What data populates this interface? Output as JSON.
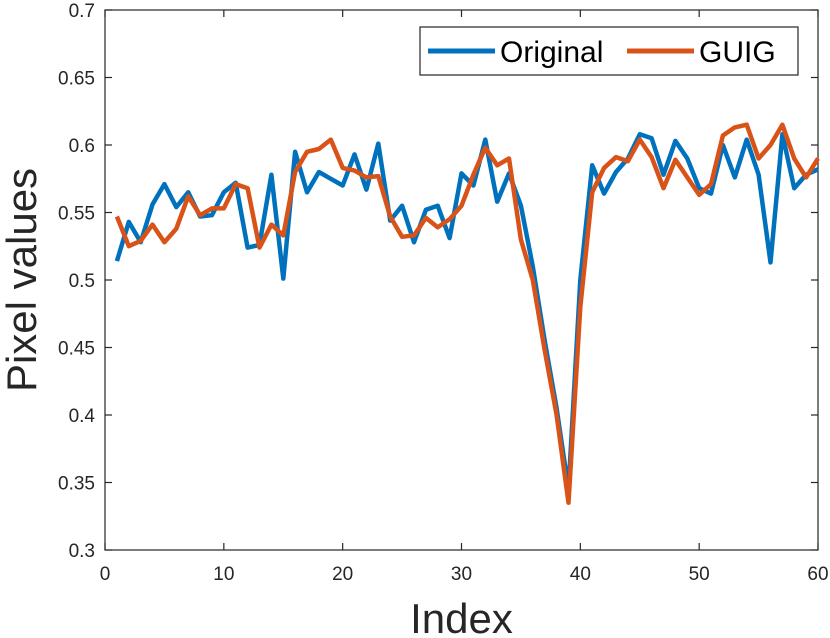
{
  "chart_data": {
    "type": "line",
    "xlabel": "Index",
    "ylabel": "Pixel values",
    "xlim": [
      0,
      60
    ],
    "ylim": [
      0.3,
      0.7
    ],
    "xticks": [
      0,
      10,
      20,
      30,
      40,
      50,
      60
    ],
    "yticks": [
      0.3,
      0.35,
      0.4,
      0.45,
      0.5,
      0.55,
      0.6,
      0.65,
      0.7
    ],
    "xtick_labels": [
      "0",
      "10",
      "20",
      "30",
      "40",
      "50",
      "60"
    ],
    "ytick_labels": [
      "0.3",
      "0.35",
      "0.4",
      "0.45",
      "0.5",
      "0.55",
      "0.6",
      "0.65",
      "0.7"
    ],
    "grid": false,
    "legend_position": "top-right",
    "x": [
      1,
      2,
      3,
      4,
      5,
      6,
      7,
      8,
      9,
      10,
      11,
      12,
      13,
      14,
      15,
      16,
      17,
      18,
      19,
      20,
      21,
      22,
      23,
      24,
      25,
      26,
      27,
      28,
      29,
      30,
      31,
      32,
      33,
      34,
      35,
      36,
      37,
      38,
      39,
      40,
      41,
      42,
      43,
      44,
      45,
      46,
      47,
      48,
      49,
      50,
      51,
      52,
      53,
      54,
      55,
      56,
      57,
      58,
      59,
      60
    ],
    "series": [
      {
        "name": "Original",
        "color": "#0072BD",
        "values": [
          0.514,
          0.543,
          0.528,
          0.556,
          0.571,
          0.554,
          0.565,
          0.547,
          0.548,
          0.565,
          0.572,
          0.524,
          0.526,
          0.578,
          0.501,
          0.595,
          0.565,
          0.58,
          0.575,
          0.57,
          0.593,
          0.567,
          0.601,
          0.544,
          0.555,
          0.528,
          0.552,
          0.555,
          0.531,
          0.579,
          0.57,
          0.604,
          0.558,
          0.579,
          0.555,
          0.51,
          0.455,
          0.405,
          0.345,
          0.5,
          0.585,
          0.564,
          0.58,
          0.59,
          0.608,
          0.605,
          0.578,
          0.603,
          0.59,
          0.568,
          0.564,
          0.6,
          0.576,
          0.604,
          0.578,
          0.513,
          0.608,
          0.568,
          0.578,
          0.582
        ]
      },
      {
        "name": "GUIG",
        "color": "#D95319",
        "values": [
          0.547,
          0.525,
          0.529,
          0.541,
          0.528,
          0.538,
          0.562,
          0.548,
          0.553,
          0.553,
          0.571,
          0.568,
          0.524,
          0.541,
          0.533,
          0.58,
          0.595,
          0.597,
          0.604,
          0.583,
          0.581,
          0.576,
          0.577,
          0.547,
          0.532,
          0.533,
          0.546,
          0.539,
          0.545,
          0.555,
          0.578,
          0.598,
          0.585,
          0.59,
          0.53,
          0.5,
          0.448,
          0.4,
          0.335,
          0.48,
          0.565,
          0.583,
          0.591,
          0.588,
          0.604,
          0.591,
          0.568,
          0.589,
          0.576,
          0.563,
          0.571,
          0.607,
          0.613,
          0.615,
          0.59,
          0.6,
          0.615,
          0.59,
          0.576,
          0.59
        ]
      }
    ]
  }
}
